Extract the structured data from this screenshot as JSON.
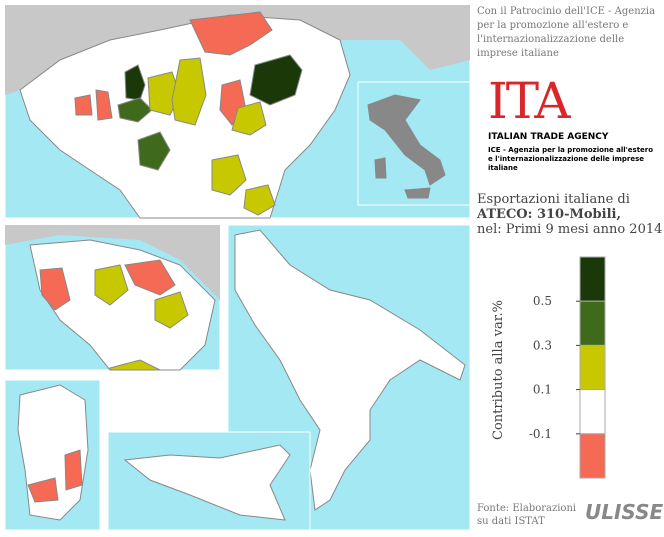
{
  "header": {
    "patronage": "Con il Patrocinio dell'ICE - Agenzia per la promozione all'estero e l'internazionalizzazione delle imprese italiane"
  },
  "logo": {
    "mark": "ITA",
    "name": "ITALIAN TRADE AGENCY",
    "subtitle": "ICE - Agenzia per la promozione all'estero e l'internazionalizzazione delle imprese italiane"
  },
  "title": {
    "line1": "Esportazioni italiane di",
    "line2": "ATECO: 310-Mobili,",
    "line3": "nel: Primi 9 mesi anno 2014"
  },
  "legend": {
    "title": "Contributo alla var.%",
    "ticks": [
      0.5,
      0.3,
      0.1,
      -0.1
    ],
    "colors": [
      "#1b3808",
      "#3f6a1c",
      "#c8c800",
      "#ffffff",
      "#f46a55"
    ]
  },
  "footer": {
    "source": "Fonte: Elaborazioni su dati ISTAT",
    "brand": "ULISSE"
  }
}
